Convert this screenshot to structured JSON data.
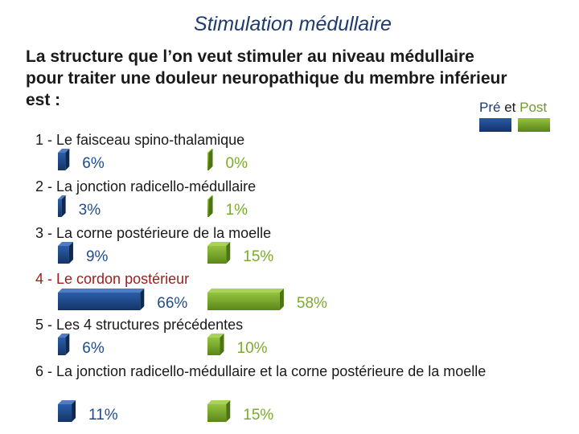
{
  "title": "Stimulation médullaire",
  "question": "La structure que l’on veut stimuler au niveau médullaire pour traiter une douleur neuropathique du membre inférieur est :",
  "legend": {
    "pre": "Pré",
    "sep": "et",
    "post": "Post"
  },
  "colors": {
    "pre": "#1f4b8f",
    "post": "#7aab2c",
    "highlight": "#9b1c1c"
  },
  "chart_data": {
    "type": "bar",
    "orientation": "horizontal",
    "categories": [
      "1 - Le faisceau spino-thalamique",
      "2 - La jonction radicello-médullaire",
      "3 - La corne postérieure de la moelle",
      "4 - Le cordon postérieur",
      "5 - Les 4 structures précédentes",
      "6 - La jonction radicello-médullaire et la corne postérieure de la moelle"
    ],
    "series": [
      {
        "name": "Pré",
        "values": [
          6,
          3,
          9,
          66,
          6,
          11
        ]
      },
      {
        "name": "Post",
        "values": [
          0,
          1,
          15,
          58,
          10,
          15
        ]
      }
    ],
    "data_labels": {
      "pre": [
        "6%",
        "3%",
        "9%",
        "66%",
        "6%",
        "11%"
      ],
      "post": [
        "0%",
        "1%",
        "15%",
        "58%",
        "10%",
        "15%"
      ]
    },
    "highlighted_category": 3,
    "legend_position": "top-right"
  }
}
